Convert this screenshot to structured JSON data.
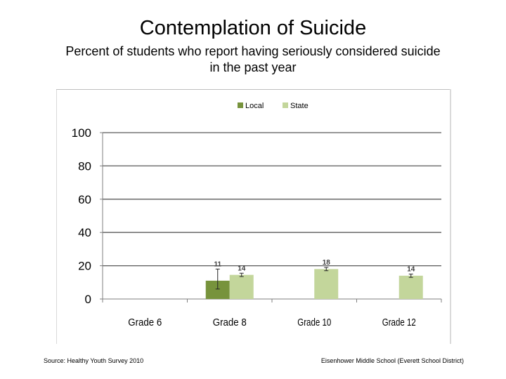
{
  "slide": {
    "title": "Contemplation of Suicide",
    "subtitle_line1": "Percent of students who report having seriously considered suicide",
    "subtitle_line2": "in the past year",
    "source": "Source: Healthy Youth Survey 2010",
    "school": "Eisenhower Middle School (Everett School District)"
  },
  "colors": {
    "local": "#77933c",
    "state": "#c3d69b",
    "axis": "#7f7f7f",
    "grid": "#595959"
  },
  "chart_data": {
    "type": "bar",
    "title": "",
    "xlabel": "",
    "ylabel": "",
    "ylim": [
      0,
      100
    ],
    "yticks": [
      0,
      20,
      40,
      60,
      80,
      100
    ],
    "grid": true,
    "legend_position": "top",
    "categories": [
      "Grade 6",
      "Grade 8",
      "Grade 10",
      "Grade 12"
    ],
    "series": [
      {
        "name": "Local",
        "values": [
          null,
          11,
          null,
          null
        ],
        "labels": [
          "",
          "11",
          "",
          ""
        ],
        "error_low": [
          null,
          6,
          null,
          null
        ],
        "error_high": [
          null,
          18,
          null,
          null
        ]
      },
      {
        "name": "State",
        "values": [
          null,
          14.5,
          18,
          14
        ],
        "labels": [
          "",
          "14",
          "18",
          "14"
        ],
        "error_low": [
          null,
          13.5,
          17,
          13
        ],
        "error_high": [
          null,
          15.5,
          19,
          15
        ]
      }
    ]
  }
}
